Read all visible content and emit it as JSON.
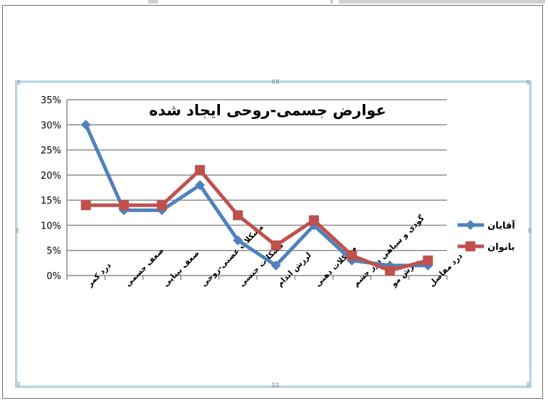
{
  "chart_data": {
    "type": "line",
    "title": "عوارض جسمی-روحی ایجاد شده",
    "categories": [
      "درد کمر",
      "ضعف جسمی",
      "ضعف بینایی",
      "مشکلات عصبی-روحی",
      "مشکلات جنسی",
      "لرزش اندام",
      "مشکلات ذهنی",
      "گودی و سیاهی دور چشم",
      "ریزش مو",
      "درد مفاصل"
    ],
    "series": [
      {
        "name": "آقایان",
        "color": "#4f81bd",
        "marker": "diamond",
        "values": [
          30,
          13,
          13,
          18,
          7,
          2,
          10,
          3,
          2,
          2
        ]
      },
      {
        "name": "بانوان",
        "color": "#c0504d",
        "marker": "square",
        "values": [
          14,
          14,
          14,
          21,
          12,
          6,
          11,
          4,
          1,
          3
        ]
      }
    ],
    "y_ticks": [
      "0%",
      "5%",
      "10%",
      "15%",
      "20%",
      "25%",
      "30%",
      "35%"
    ],
    "ylim": [
      0,
      35
    ],
    "grid": true,
    "legend_position": "right"
  }
}
